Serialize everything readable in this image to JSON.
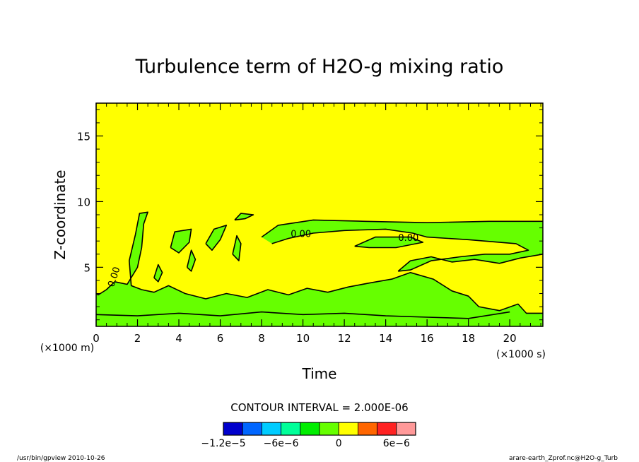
{
  "chart_data": {
    "type": "heatmap",
    "title": "Turbulence term of H2O-g mixing ratio",
    "xlabel": "Time",
    "ylabel": "Z-coordinate",
    "x_unit_label": "(×1000 s)",
    "y_unit_label": "(×1000 m)",
    "xlim": [
      0,
      21.6
    ],
    "ylim": [
      0.5,
      17.5
    ],
    "x_ticks": [
      0,
      2,
      4,
      6,
      8,
      10,
      12,
      14,
      16,
      18,
      20
    ],
    "x_tick_labels": [
      "0",
      "2",
      "4",
      "6",
      "8",
      "10",
      "12",
      "14",
      "16",
      "18",
      "20"
    ],
    "y_ticks": [
      5,
      10,
      15
    ],
    "y_tick_labels": [
      "5",
      "10",
      "15"
    ],
    "background_color": "#ffff00",
    "region_color": "#66ff00",
    "contour_label": "0.00",
    "contour_interval_text": "CONTOUR INTERVAL = 2.000E-06",
    "colorbar": {
      "colors": [
        "#0000cc",
        "#0066ff",
        "#00ccff",
        "#00ff99",
        "#00ee00",
        "#66ff00",
        "#ffff00",
        "#ff6600",
        "#ff2222",
        "#ff9999"
      ],
      "tick_labels": [
        "−1.2e−5",
        "−6e−6",
        "0",
        "6e−6"
      ]
    },
    "footer_left": "/usr/bin/gpview   2010-10-26",
    "footer_right": "arare-earth_Zprof.nc@H2O-g_Turb",
    "regions": [
      [
        [
          0,
          0.5
        ],
        [
          21.6,
          0.5
        ],
        [
          21.6,
          1.5
        ],
        [
          20.8,
          1.5
        ],
        [
          20.4,
          2.2
        ],
        [
          19.5,
          1.7
        ],
        [
          18.5,
          2.0
        ],
        [
          18,
          2.8
        ],
        [
          17.2,
          3.2
        ],
        [
          16.3,
          4.1
        ],
        [
          15.2,
          4.6
        ],
        [
          14.3,
          4.1
        ],
        [
          13.2,
          3.8
        ],
        [
          12.2,
          3.5
        ],
        [
          11.2,
          3.1
        ],
        [
          10.2,
          3.4
        ],
        [
          9.3,
          2.9
        ],
        [
          8.3,
          3.3
        ],
        [
          7.3,
          2.7
        ],
        [
          6.3,
          3.0
        ],
        [
          5.3,
          2.6
        ],
        [
          4.3,
          3.0
        ],
        [
          3.5,
          3.6
        ],
        [
          2.8,
          3.1
        ],
        [
          2.2,
          3.3
        ],
        [
          1.7,
          3.6
        ],
        [
          1.6,
          5.5
        ],
        [
          1.9,
          7.5
        ],
        [
          2.1,
          9.1
        ],
        [
          2.5,
          9.2
        ],
        [
          2.3,
          8.3
        ],
        [
          2.2,
          6.5
        ],
        [
          2.0,
          5.0
        ],
        [
          1.5,
          3.7
        ],
        [
          0.9,
          3.9
        ],
        [
          0.5,
          3.3
        ],
        [
          0.1,
          2.9
        ],
        [
          0,
          3.0
        ]
      ],
      [
        [
          8.0,
          7.3
        ],
        [
          8.8,
          8.2
        ],
        [
          10.5,
          8.6
        ],
        [
          13,
          8.5
        ],
        [
          16,
          8.4
        ],
        [
          19,
          8.5
        ],
        [
          21.6,
          8.5
        ],
        [
          21.6,
          6.0
        ],
        [
          20.5,
          5.7
        ],
        [
          19.5,
          5.3
        ],
        [
          18.3,
          5.6
        ],
        [
          17.2,
          5.4
        ],
        [
          16.2,
          5.8
        ],
        [
          15.2,
          5.5
        ],
        [
          14.6,
          4.7
        ],
        [
          15.2,
          4.8
        ],
        [
          16.2,
          5.5
        ],
        [
          17.6,
          5.8
        ],
        [
          18.8,
          6.0
        ],
        [
          20.0,
          6.0
        ],
        [
          20.9,
          6.3
        ],
        [
          20.3,
          6.8
        ],
        [
          18.0,
          7.1
        ],
        [
          16.0,
          7.3
        ],
        [
          15.3,
          7.6
        ],
        [
          14.0,
          7.9
        ],
        [
          12.0,
          7.8
        ],
        [
          10.5,
          7.6
        ],
        [
          9.3,
          7.2
        ],
        [
          8.5,
          6.8
        ]
      ],
      [
        [
          3.6,
          6.5
        ],
        [
          3.8,
          7.7
        ],
        [
          4.6,
          7.9
        ],
        [
          4.5,
          6.9
        ],
        [
          4.0,
          6.1
        ]
      ],
      [
        [
          5.3,
          6.8
        ],
        [
          5.7,
          7.9
        ],
        [
          6.3,
          8.2
        ],
        [
          6.0,
          7.1
        ],
        [
          5.6,
          6.3
        ]
      ],
      [
        [
          6.6,
          6.0
        ],
        [
          6.8,
          7.4
        ],
        [
          7.0,
          6.8
        ],
        [
          6.9,
          5.5
        ]
      ],
      [
        [
          4.4,
          5.0
        ],
        [
          4.6,
          6.3
        ],
        [
          4.8,
          5.6
        ],
        [
          4.6,
          4.7
        ]
      ],
      [
        [
          2.8,
          4.2
        ],
        [
          3.0,
          5.2
        ],
        [
          3.2,
          4.6
        ],
        [
          3.0,
          3.9
        ]
      ],
      [
        [
          6.7,
          8.6
        ],
        [
          7.0,
          9.1
        ],
        [
          7.6,
          9.0
        ],
        [
          7.2,
          8.7
        ]
      ],
      [
        [
          12.5,
          6.6
        ],
        [
          13.5,
          7.3
        ],
        [
          15.2,
          7.3
        ],
        [
          15.8,
          6.9
        ],
        [
          14.5,
          6.5
        ],
        [
          13.2,
          6.5
        ]
      ]
    ],
    "contours": [
      [
        [
          0,
          3.0
        ],
        [
          0.1,
          2.9
        ],
        [
          0.5,
          3.3
        ],
        [
          0.9,
          3.9
        ],
        [
          1.5,
          3.7
        ],
        [
          2.0,
          5.0
        ],
        [
          2.2,
          6.5
        ],
        [
          2.3,
          8.3
        ],
        [
          2.5,
          9.2
        ],
        [
          2.1,
          9.1
        ],
        [
          1.9,
          7.5
        ],
        [
          1.6,
          5.5
        ],
        [
          1.7,
          3.6
        ],
        [
          2.2,
          3.3
        ],
        [
          2.8,
          3.1
        ],
        [
          3.5,
          3.6
        ],
        [
          4.3,
          3.0
        ],
        [
          5.3,
          2.6
        ],
        [
          6.3,
          3.0
        ],
        [
          7.3,
          2.7
        ],
        [
          8.3,
          3.3
        ],
        [
          9.3,
          2.9
        ],
        [
          10.2,
          3.4
        ],
        [
          11.2,
          3.1
        ],
        [
          12.2,
          3.5
        ],
        [
          13.2,
          3.8
        ],
        [
          14.3,
          4.1
        ],
        [
          15.2,
          4.6
        ],
        [
          16.3,
          4.1
        ],
        [
          17.2,
          3.2
        ],
        [
          18,
          2.8
        ],
        [
          18.5,
          2.0
        ],
        [
          19.5,
          1.7
        ],
        [
          20.4,
          2.2
        ],
        [
          20.8,
          1.5
        ],
        [
          21.6,
          1.5
        ]
      ],
      [
        [
          8.0,
          7.3
        ],
        [
          8.8,
          8.2
        ],
        [
          10.5,
          8.6
        ],
        [
          13,
          8.5
        ],
        [
          16,
          8.4
        ],
        [
          19,
          8.5
        ],
        [
          21.6,
          8.5
        ]
      ],
      [
        [
          21.6,
          6.0
        ],
        [
          20.5,
          5.7
        ],
        [
          19.5,
          5.3
        ],
        [
          18.3,
          5.6
        ],
        [
          17.2,
          5.4
        ],
        [
          16.2,
          5.8
        ],
        [
          15.2,
          5.5
        ],
        [
          14.6,
          4.7
        ]
      ],
      [
        [
          8.5,
          6.8
        ],
        [
          9.3,
          7.2
        ],
        [
          10.5,
          7.6
        ],
        [
          12.0,
          7.8
        ],
        [
          14.0,
          7.9
        ],
        [
          15.3,
          7.6
        ],
        [
          16.0,
          7.3
        ],
        [
          18.0,
          7.1
        ],
        [
          20.3,
          6.8
        ],
        [
          20.9,
          6.3
        ],
        [
          20.0,
          6.0
        ],
        [
          18.8,
          6.0
        ],
        [
          17.6,
          5.8
        ],
        [
          16.2,
          5.5
        ],
        [
          15.2,
          4.8
        ],
        [
          14.6,
          4.7
        ]
      ],
      [
        [
          12.5,
          6.6
        ],
        [
          13.5,
          7.3
        ],
        [
          15.2,
          7.3
        ],
        [
          15.8,
          6.9
        ],
        [
          14.5,
          6.5
        ],
        [
          13.2,
          6.5
        ],
        [
          12.5,
          6.6
        ]
      ],
      [
        [
          3.6,
          6.5
        ],
        [
          3.8,
          7.7
        ],
        [
          4.6,
          7.9
        ],
        [
          4.5,
          6.9
        ],
        [
          4.0,
          6.1
        ],
        [
          3.6,
          6.5
        ]
      ],
      [
        [
          5.3,
          6.8
        ],
        [
          5.7,
          7.9
        ],
        [
          6.3,
          8.2
        ],
        [
          6.0,
          7.1
        ],
        [
          5.6,
          6.3
        ],
        [
          5.3,
          6.8
        ]
      ],
      [
        [
          6.6,
          6.0
        ],
        [
          6.8,
          7.4
        ],
        [
          7.0,
          6.8
        ],
        [
          6.9,
          5.5
        ],
        [
          6.6,
          6.0
        ]
      ],
      [
        [
          4.4,
          5.0
        ],
        [
          4.6,
          6.3
        ],
        [
          4.8,
          5.6
        ],
        [
          4.6,
          4.7
        ],
        [
          4.4,
          5.0
        ]
      ],
      [
        [
          2.8,
          4.2
        ],
        [
          3.0,
          5.2
        ],
        [
          3.2,
          4.6
        ],
        [
          3.0,
          3.9
        ],
        [
          2.8,
          4.2
        ]
      ],
      [
        [
          6.7,
          8.6
        ],
        [
          7.0,
          9.1
        ],
        [
          7.6,
          9.0
        ],
        [
          7.2,
          8.7
        ],
        [
          6.7,
          8.6
        ]
      ],
      [
        [
          0,
          1.4
        ],
        [
          2,
          1.3
        ],
        [
          4,
          1.5
        ],
        [
          6,
          1.3
        ],
        [
          8,
          1.6
        ],
        [
          10,
          1.4
        ],
        [
          12,
          1.5
        ],
        [
          14,
          1.3
        ],
        [
          16,
          1.2
        ],
        [
          18,
          1.1
        ],
        [
          20,
          1.6
        ]
      ]
    ],
    "contour_labels": [
      {
        "x": 1.0,
        "y": 4.2
      },
      {
        "x": 9.9,
        "y": 7.3
      },
      {
        "x": 15.1,
        "y": 7.0
      }
    ]
  }
}
